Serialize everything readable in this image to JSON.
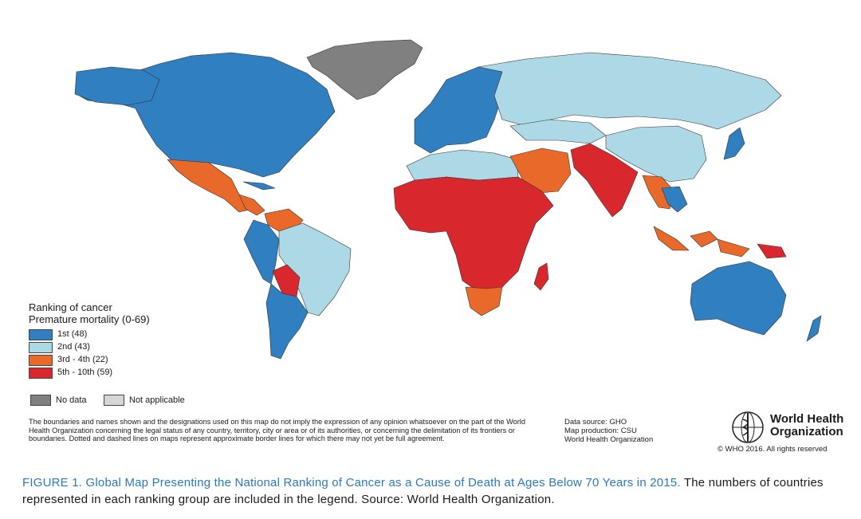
{
  "colors": {
    "rank_1st": "#2f7fc1",
    "rank_2nd": "#add8e6",
    "rank_3rd_4th": "#e8692a",
    "rank_5th_10th": "#d9272e",
    "no_data": "#808080",
    "not_applicable": "#d6d6d6",
    "caption_accent": "#2a7ab8"
  },
  "legend": {
    "title_line1": "Ranking of cancer",
    "title_line2": "Premature mortality (0-69)",
    "items": [
      {
        "label": "1st (48)",
        "color": "#2f7fc1"
      },
      {
        "label": "2nd (43)",
        "color": "#add8e6"
      },
      {
        "label": "3rd - 4th (22)",
        "color": "#e8692a"
      },
      {
        "label": "5th - 10th (59)",
        "color": "#d9272e"
      }
    ],
    "no_data": "No data",
    "not_applicable": "Not applicable"
  },
  "disclaimer": "The boundaries and names shown and the designations used on this map do not imply the expression of any opinion whatsoever on the part of the World Health Organization concerning the legal status of any country, territory, city or area or of its authorities, or concerning the delimitation of its frontiers or boundaries. Dotted and dashed lines on maps represent approximate border lines for which there may not yet be full agreement.",
  "source": {
    "line1": "Data source: GHO",
    "line2": "Map production: CSU",
    "line3": "World Health Organization"
  },
  "who": {
    "name_line1": "World Health",
    "name_line2": "Organization",
    "copyright": "© WHO 2016. All rights reserved"
  },
  "caption": {
    "figure": "FIGURE 1. Global Map Presenting the National Ranking of Cancer as a Cause of Death at Ages Below 70 Years in 2015.",
    "text": " The numbers of countries represented in each ranking group are included in the legend. Source: World Health Organization."
  }
}
